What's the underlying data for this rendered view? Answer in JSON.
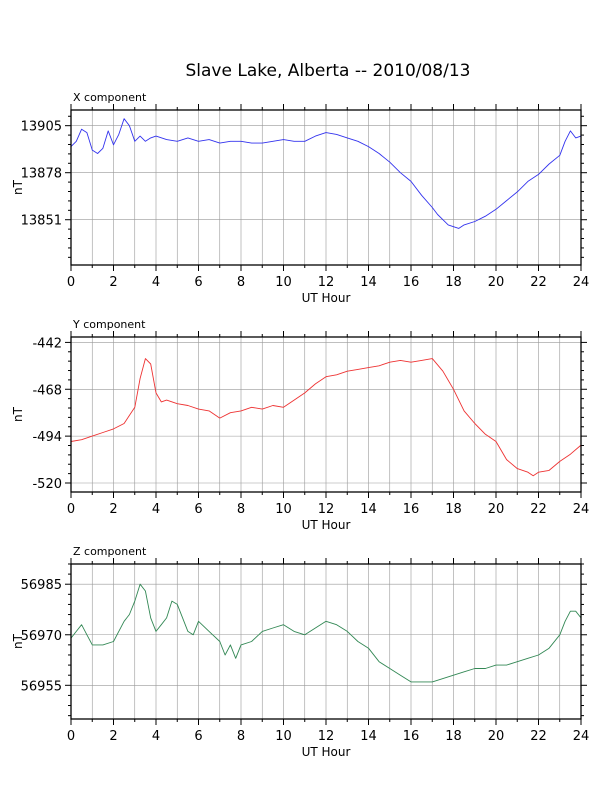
{
  "title": "Slave Lake, Alberta -- 2010/08/13",
  "chart_data": [
    {
      "type": "line",
      "panel_label": "X component",
      "xlabel": "UT Hour",
      "ylabel": "nT",
      "xlim": [
        0,
        24
      ],
      "ylim": [
        13825,
        13914
      ],
      "x_ticks": [
        0,
        2,
        4,
        6,
        8,
        10,
        12,
        14,
        16,
        18,
        20,
        22,
        24
      ],
      "y_ticks": [
        13851,
        13878,
        13905
      ],
      "grid": true,
      "color": "#3333ee",
      "series": [
        {
          "x": [
            0,
            0.25,
            0.5,
            0.75,
            1,
            1.25,
            1.5,
            1.75,
            2,
            2.25,
            2.5,
            2.75,
            3,
            3.25,
            3.5,
            3.75,
            4,
            4.5,
            5,
            5.5,
            6,
            6.5,
            7,
            7.5,
            8,
            8.5,
            9,
            9.5,
            10,
            10.5,
            11,
            11.5,
            12,
            12.5,
            13,
            13.5,
            14,
            14.5,
            15,
            15.5,
            16,
            16.5,
            17,
            17.25,
            17.5,
            17.75,
            18,
            18.25,
            18.5,
            19,
            19.5,
            20,
            20.5,
            21,
            21.5,
            22,
            22.5,
            23,
            23.25,
            23.5,
            23.75,
            24
          ],
          "y": [
            13893,
            13896,
            13903,
            13901,
            13891,
            13889,
            13892,
            13902,
            13894,
            13900,
            13909,
            13905,
            13896,
            13899,
            13896,
            13898,
            13899,
            13897,
            13896,
            13898,
            13896,
            13897,
            13895,
            13896,
            13896,
            13895,
            13895,
            13896,
            13897,
            13896,
            13896,
            13899,
            13901,
            13900,
            13898,
            13896,
            13893,
            13889,
            13884,
            13878,
            13873,
            13865,
            13858,
            13854,
            13851,
            13848,
            13847,
            13846,
            13848,
            13850,
            13853,
            13857,
            13862,
            13867,
            13873,
            13877,
            13883,
            13888,
            13896,
            13902,
            13898,
            13899
          ]
        }
      ]
    },
    {
      "type": "line",
      "panel_label": "Y component",
      "xlabel": "UT Hour",
      "ylabel": "nT",
      "xlim": [
        0,
        24
      ],
      "ylim": [
        -525,
        -439
      ],
      "x_ticks": [
        0,
        2,
        4,
        6,
        8,
        10,
        12,
        14,
        16,
        18,
        20,
        22,
        24
      ],
      "y_ticks": [
        -442,
        -468,
        -494,
        -520
      ],
      "grid": true,
      "color": "#ee3333",
      "series": [
        {
          "x": [
            0,
            0.5,
            1,
            1.5,
            2,
            2.5,
            3,
            3.25,
            3.5,
            3.75,
            4,
            4.25,
            4.5,
            5,
            5.5,
            6,
            6.5,
            7,
            7.5,
            8,
            8.5,
            9,
            9.5,
            10,
            10.5,
            11,
            11.5,
            12,
            12.5,
            13,
            13.5,
            14,
            14.5,
            15,
            15.5,
            16,
            16.5,
            17,
            17.5,
            18,
            18.5,
            19,
            19.5,
            20,
            20.5,
            21,
            21.5,
            21.75,
            22,
            22.5,
            23,
            23.5,
            24
          ],
          "y": [
            -497,
            -496,
            -494,
            -492,
            -490,
            -487,
            -478,
            -462,
            -451,
            -454,
            -470,
            -475,
            -474,
            -476,
            -477,
            -479,
            -480,
            -484,
            -481,
            -480,
            -478,
            -479,
            -477,
            -478,
            -474,
            -470,
            -465,
            -461,
            -460,
            -458,
            -457,
            -456,
            -455,
            -453,
            -452,
            -453,
            -452,
            -451,
            -458,
            -468,
            -480,
            -487,
            -493,
            -497,
            -507,
            -512,
            -514,
            -516,
            -514,
            -513,
            -508,
            -504,
            -499
          ]
        }
      ]
    },
    {
      "type": "line",
      "panel_label": "Z component",
      "xlabel": "UT Hour",
      "ylabel": "nT",
      "xlim": [
        0,
        24
      ],
      "ylim": [
        56945,
        56991
      ],
      "x_ticks": [
        0,
        2,
        4,
        6,
        8,
        10,
        12,
        14,
        16,
        18,
        20,
        22,
        24
      ],
      "y_ticks": [
        56955,
        56970,
        56985
      ],
      "grid": true,
      "color": "#338855",
      "series": [
        {
          "x": [
            0,
            0.25,
            0.5,
            0.75,
            1,
            1.5,
            2,
            2.5,
            2.75,
            3,
            3.25,
            3.5,
            3.75,
            4,
            4.25,
            4.5,
            4.75,
            5,
            5.25,
            5.5,
            5.75,
            6,
            6.5,
            7,
            7.25,
            7.5,
            7.75,
            8,
            8.5,
            9,
            9.5,
            10,
            10.5,
            11,
            11.5,
            12,
            12.5,
            13,
            13.5,
            14,
            14.5,
            15,
            15.5,
            16,
            16.5,
            17,
            17.5,
            18,
            18.5,
            19,
            19.5,
            20,
            20.5,
            21,
            21.5,
            22,
            22.5,
            23,
            23.25,
            23.5,
            23.75,
            24
          ],
          "y": [
            56969,
            56971,
            56973,
            56970,
            56967,
            56967,
            56968,
            56974,
            56976,
            56980,
            56985,
            56983,
            56975,
            56971,
            56973,
            56975,
            56980,
            56979,
            56975,
            56971,
            56970,
            56974,
            56971,
            56968,
            56964,
            56967,
            56963,
            56967,
            56968,
            56971,
            56972,
            56973,
            56971,
            56970,
            56972,
            56974,
            56973,
            56971,
            56968,
            56966,
            56962,
            56960,
            56958,
            56956,
            56956,
            56956,
            56957,
            56958,
            56959,
            56960,
            56960,
            56961,
            56961,
            56962,
            56963,
            56964,
            56966,
            56970,
            56974,
            56977,
            56977,
            56975
          ]
        }
      ]
    }
  ]
}
